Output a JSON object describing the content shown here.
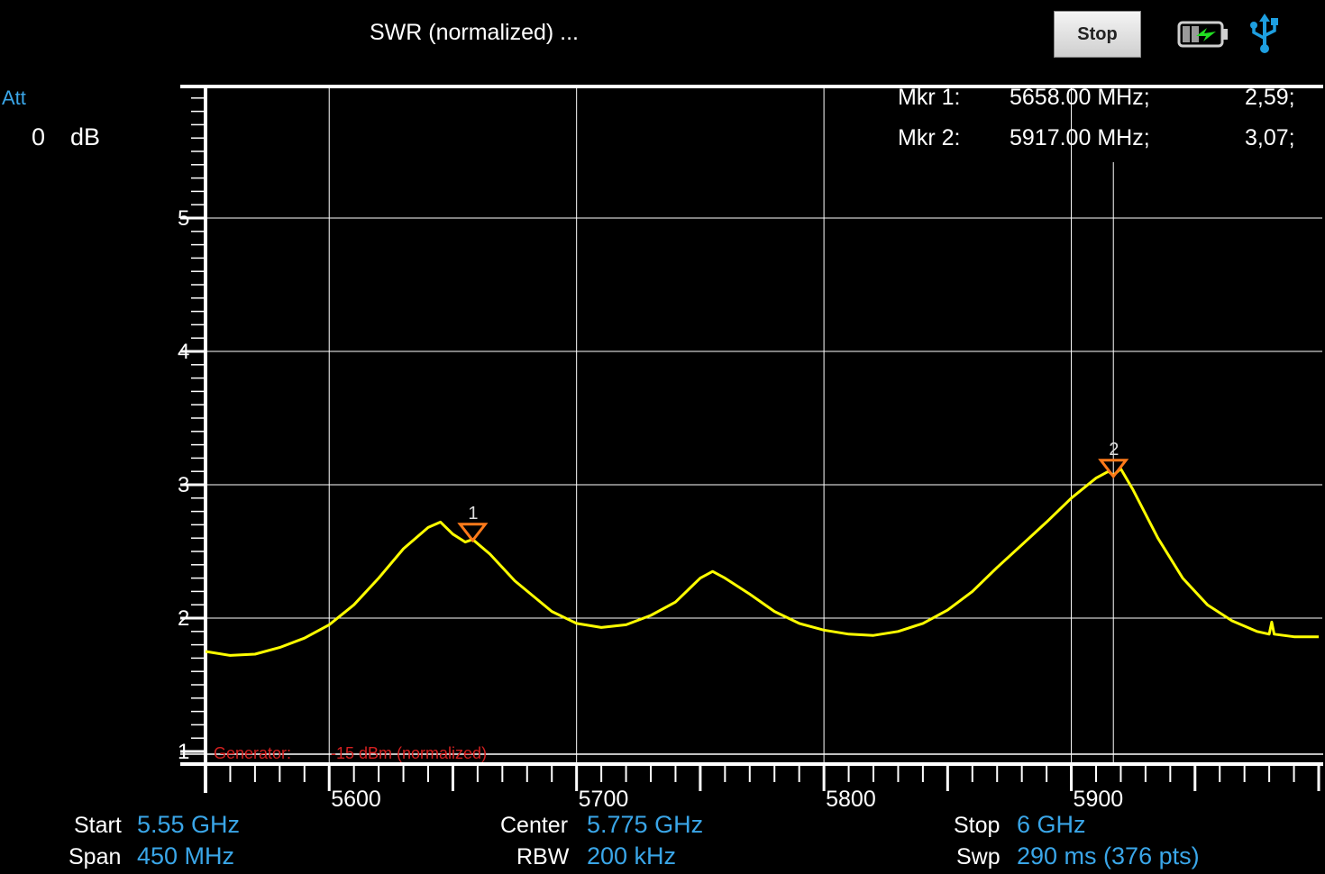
{
  "header": {
    "title": "SWR (normalized) ...",
    "stop_label": "Stop",
    "battery_icon": "battery-charging-icon",
    "usb_icon": "usb-icon"
  },
  "attenuation": {
    "label": "Att",
    "value": "0",
    "unit": "dB"
  },
  "markers": [
    {
      "number": "1",
      "label": "Mkr 1:",
      "freq": "5658.00 MHz;",
      "value": "2,59;"
    },
    {
      "number": "2",
      "label": "Mkr 2:",
      "freq": "5917.00 MHz;",
      "value": "3,07;"
    }
  ],
  "generator": {
    "label": "Generator:",
    "value": "-15 dBm (normalized)"
  },
  "footer": {
    "start_label": "Start",
    "start_value": "5.55 GHz",
    "span_label": "Span",
    "span_value": "450 MHz",
    "center_label": "Center",
    "center_value": "5.775 GHz",
    "rbw_label": "RBW",
    "rbw_value": "200 kHz",
    "stop_label": "Stop",
    "stop_value": "6 GHz",
    "swp_label": "Swp",
    "swp_value": "290  ms (376 pts)"
  },
  "colors": {
    "trace": "#ffff00",
    "marker": "#ff7a1a",
    "accent": "#3aa6e8",
    "grid": "#ffffff",
    "generator": "#d42020"
  },
  "chart_data": {
    "type": "line",
    "title": "",
    "xlabel": "",
    "ylabel": "",
    "xlim": [
      5550,
      6000
    ],
    "ylim": [
      1,
      6
    ],
    "x_ticks": [
      "5600",
      "5700",
      "5800",
      "5900"
    ],
    "y_ticks": [
      "1",
      "2",
      "3",
      "4",
      "5"
    ],
    "grid": true,
    "series": [
      {
        "x": [
          5550,
          5560,
          5570,
          5580,
          5590,
          5600,
          5610,
          5620,
          5630,
          5640,
          5645,
          5650,
          5655,
          5658,
          5665,
          5675,
          5690,
          5700,
          5710,
          5720,
          5730,
          5740,
          5750,
          5755,
          5760,
          5770,
          5780,
          5790,
          5800,
          5810,
          5820,
          5830,
          5840,
          5850,
          5860,
          5870,
          5880,
          5890,
          5900,
          5910,
          5915,
          5917,
          5920,
          5925,
          5935,
          5945,
          5955,
          5965,
          5975,
          5980,
          5981,
          5982,
          5990,
          6000
        ],
        "y": [
          1.75,
          1.72,
          1.73,
          1.78,
          1.85,
          1.95,
          2.1,
          2.3,
          2.52,
          2.68,
          2.72,
          2.63,
          2.57,
          2.59,
          2.48,
          2.28,
          2.05,
          1.96,
          1.93,
          1.95,
          2.02,
          2.12,
          2.3,
          2.35,
          2.3,
          2.18,
          2.05,
          1.96,
          1.91,
          1.88,
          1.87,
          1.9,
          1.96,
          2.06,
          2.2,
          2.38,
          2.55,
          2.72,
          2.9,
          3.05,
          3.1,
          3.07,
          3.12,
          2.96,
          2.6,
          2.3,
          2.1,
          1.98,
          1.9,
          1.88,
          1.97,
          1.88,
          1.86,
          1.86
        ]
      }
    ]
  }
}
